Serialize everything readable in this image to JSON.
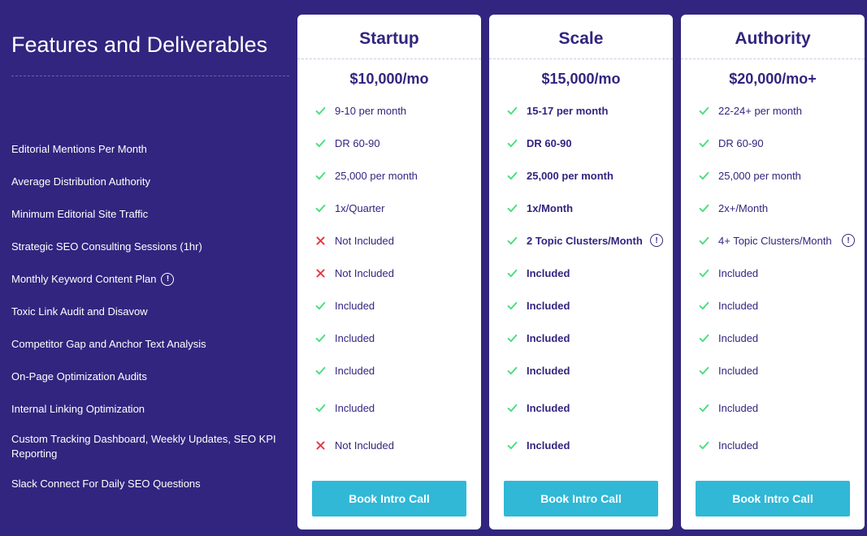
{
  "colors": {
    "page_bg": "#31257f",
    "card_bg": "#ffffff",
    "text_on_dark": "#ffffff",
    "text_on_light": "#31257f",
    "check_green": "#4ade80",
    "x_red": "#e63946",
    "cta_bg": "#30b8d6",
    "cta_text": "#ffffff",
    "dash_border_dark": "#6b63a8",
    "dash_border_light": "#c9c6de"
  },
  "heading": "Features and Deliverables",
  "features": [
    {
      "label": "Editorial Mentions Per Month",
      "info": false
    },
    {
      "label": "Average Distribution Authority",
      "info": false
    },
    {
      "label": "Minimum Editorial Site Traffic",
      "info": false
    },
    {
      "label": "Strategic SEO Consulting Sessions (1hr)",
      "info": false
    },
    {
      "label": "Monthly Keyword Content Plan",
      "info": true
    },
    {
      "label": "Toxic Link Audit and Disavow",
      "info": false
    },
    {
      "label": "Competitor Gap and Anchor Text Analysis",
      "info": false
    },
    {
      "label": "On-Page Optimization Audits",
      "info": false
    },
    {
      "label": "Internal Linking Optimization",
      "info": false
    },
    {
      "label": "Custom Tracking Dashboard, Weekly Updates, SEO KPI Reporting",
      "info": false
    },
    {
      "label": "Slack Connect For Daily SEO Questions",
      "info": false
    }
  ],
  "plans": [
    {
      "name": "Startup",
      "price": "$10,000/mo",
      "cta": "Book Intro Call",
      "bold": false,
      "values": [
        {
          "icon": "check",
          "text": "9-10 per month",
          "info": false
        },
        {
          "icon": "check",
          "text": "DR 60-90",
          "info": false
        },
        {
          "icon": "check",
          "text": "25,000 per month",
          "info": false
        },
        {
          "icon": "check",
          "text": "1x/Quarter",
          "info": false
        },
        {
          "icon": "x",
          "text": "Not Included",
          "info": false
        },
        {
          "icon": "x",
          "text": "Not Included",
          "info": false
        },
        {
          "icon": "check",
          "text": "Included",
          "info": false
        },
        {
          "icon": "check",
          "text": "Included",
          "info": false
        },
        {
          "icon": "check",
          "text": "Included",
          "info": false
        },
        {
          "icon": "check",
          "text": "Included",
          "info": false
        },
        {
          "icon": "x",
          "text": "Not Included",
          "info": false
        }
      ]
    },
    {
      "name": "Scale",
      "price": "$15,000/mo",
      "cta": "Book Intro Call",
      "bold": true,
      "values": [
        {
          "icon": "check",
          "text": "15-17 per month",
          "info": false
        },
        {
          "icon": "check",
          "text": "DR 60-90",
          "info": false
        },
        {
          "icon": "check",
          "text": "25,000 per month",
          "info": false
        },
        {
          "icon": "check",
          "text": "1x/Month",
          "info": false
        },
        {
          "icon": "check",
          "text": "2 Topic Clusters/Month",
          "info": true
        },
        {
          "icon": "check",
          "text": "Included",
          "info": false
        },
        {
          "icon": "check",
          "text": "Included",
          "info": false
        },
        {
          "icon": "check",
          "text": "Included",
          "info": false
        },
        {
          "icon": "check",
          "text": "Included",
          "info": false
        },
        {
          "icon": "check",
          "text": "Included",
          "info": false
        },
        {
          "icon": "check",
          "text": "Included",
          "info": false
        }
      ]
    },
    {
      "name": "Authority",
      "price": "$20,000/mo+",
      "cta": "Book Intro Call",
      "bold": false,
      "values": [
        {
          "icon": "check",
          "text": "22-24+ per month",
          "info": false
        },
        {
          "icon": "check",
          "text": "DR 60-90",
          "info": false
        },
        {
          "icon": "check",
          "text": "25,000 per month",
          "info": false
        },
        {
          "icon": "check",
          "text": "2x+/Month",
          "info": false
        },
        {
          "icon": "check",
          "text": "4+ Topic Clusters/Month",
          "info": true
        },
        {
          "icon": "check",
          "text": "Included",
          "info": false
        },
        {
          "icon": "check",
          "text": "Included",
          "info": false
        },
        {
          "icon": "check",
          "text": "Included",
          "info": false
        },
        {
          "icon": "check",
          "text": "Included",
          "info": false
        },
        {
          "icon": "check",
          "text": "Included",
          "info": false
        },
        {
          "icon": "check",
          "text": "Included",
          "info": false
        }
      ]
    }
  ]
}
